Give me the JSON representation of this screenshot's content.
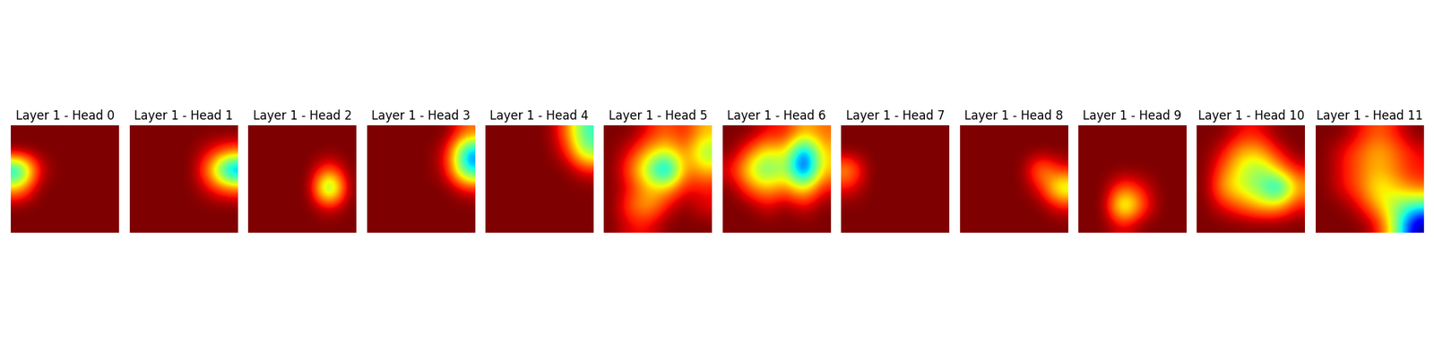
{
  "chart_data": [
    {
      "type": "heatmap",
      "title": "Layer 1 - Head 0",
      "tick_labels": false,
      "cells": [
        [
          0,
          0,
          0,
          0,
          0,
          0
        ],
        [
          0,
          0,
          0,
          0,
          0,
          0
        ],
        [
          0.8,
          0.1,
          0,
          0,
          0,
          0
        ],
        [
          0.3,
          0,
          0,
          0,
          0,
          0
        ],
        [
          0,
          0,
          0,
          0,
          0,
          0
        ],
        [
          0,
          0,
          0,
          0,
          0,
          0
        ]
      ]
    },
    {
      "type": "heatmap",
      "title": "Layer 1 - Head 1",
      "tick_labels": false,
      "cells": [
        [
          0,
          0,
          0,
          0,
          0,
          0
        ],
        [
          0,
          0,
          0,
          0,
          0.1,
          0.2
        ],
        [
          0,
          0,
          0,
          0,
          0.3,
          0.9
        ],
        [
          0,
          0,
          0,
          0,
          0.1,
          0.2
        ],
        [
          0,
          0,
          0,
          0,
          0,
          0
        ],
        [
          0,
          0,
          0,
          0,
          0,
          0
        ]
      ]
    },
    {
      "type": "heatmap",
      "title": "Layer 1 - Head 2",
      "tick_labels": false,
      "cells": [
        [
          0,
          0,
          0,
          0,
          0,
          0
        ],
        [
          0,
          0,
          0,
          0,
          0,
          0
        ],
        [
          0,
          0,
          0,
          0,
          0.2,
          0
        ],
        [
          0,
          0,
          0,
          0,
          0.8,
          0
        ],
        [
          0,
          0,
          0,
          0,
          0.1,
          0
        ],
        [
          0,
          0,
          0,
          0,
          0,
          0
        ]
      ]
    },
    {
      "type": "heatmap",
      "title": "Layer 1 - Head 3",
      "tick_labels": false,
      "cells": [
        [
          0,
          0,
          0,
          0,
          0,
          0.2
        ],
        [
          0,
          0,
          0,
          0,
          0.1,
          0.8
        ],
        [
          0,
          0,
          0,
          0,
          0.1,
          0.7
        ],
        [
          0,
          0,
          0,
          0,
          0,
          0.1
        ],
        [
          0,
          0,
          0,
          0,
          0,
          0
        ],
        [
          0,
          0,
          0,
          0,
          0,
          0
        ]
      ]
    },
    {
      "type": "heatmap",
      "title": "Layer 1 - Head 4",
      "tick_labels": false,
      "cells": [
        [
          0,
          0,
          0,
          0,
          0.2,
          0.6
        ],
        [
          0,
          0,
          0,
          0,
          0.1,
          0.5
        ],
        [
          0,
          0,
          0,
          0,
          0,
          0.1
        ],
        [
          0,
          0,
          0,
          0,
          0,
          0
        ],
        [
          0,
          0,
          0,
          0,
          0,
          0
        ],
        [
          0,
          0,
          0,
          0,
          0,
          0
        ]
      ]
    },
    {
      "type": "heatmap",
      "title": "Layer 1 - Head 5",
      "tick_labels": false,
      "cells": [
        [
          0,
          0,
          0.1,
          0.2,
          0.1,
          0.3
        ],
        [
          0,
          0.1,
          0.3,
          0.4,
          0.2,
          0.5
        ],
        [
          0,
          0.2,
          0.5,
          0.9,
          0.2,
          0.3
        ],
        [
          0,
          0.1,
          0.3,
          0.3,
          0.1,
          0.1
        ],
        [
          0,
          0.2,
          0.3,
          0.1,
          0,
          0.1
        ],
        [
          0,
          0.1,
          0.1,
          0,
          0,
          0
        ]
      ]
    },
    {
      "type": "heatmap",
      "title": "Layer 1 - Head 6",
      "tick_labels": false,
      "cells": [
        [
          0,
          0,
          0.1,
          0.1,
          0.3,
          0.2
        ],
        [
          0,
          0.2,
          0.4,
          0.3,
          0.9,
          0.3
        ],
        [
          0.1,
          0.4,
          0.6,
          0.4,
          1.0,
          0.3
        ],
        [
          0,
          0.2,
          0.3,
          0.2,
          0.4,
          0.1
        ],
        [
          0,
          0,
          0.1,
          0,
          0.1,
          0
        ],
        [
          0,
          0,
          0,
          0,
          0,
          0
        ]
      ]
    },
    {
      "type": "heatmap",
      "title": "Layer 1 - Head 7",
      "tick_labels": false,
      "cells": [
        [
          0,
          0,
          0,
          0,
          0,
          0
        ],
        [
          0,
          0,
          0,
          0,
          0,
          0
        ],
        [
          0.3,
          0,
          0,
          0,
          0,
          0
        ],
        [
          0.1,
          0,
          0,
          0,
          0,
          0
        ],
        [
          0,
          0,
          0,
          0,
          0,
          0
        ],
        [
          0,
          0,
          0,
          0,
          0,
          0
        ]
      ]
    },
    {
      "type": "heatmap",
      "title": "Layer 1 - Head 8",
      "tick_labels": false,
      "cells": [
        [
          0,
          0,
          0,
          0,
          0,
          0
        ],
        [
          0,
          0,
          0,
          0,
          0,
          0
        ],
        [
          0,
          0,
          0,
          0,
          0.3,
          0.1
        ],
        [
          0,
          0,
          0,
          0,
          0.1,
          0.5
        ],
        [
          0,
          0,
          0,
          0,
          0,
          0.1
        ],
        [
          0,
          0,
          0,
          0,
          0,
          0
        ]
      ]
    },
    {
      "type": "heatmap",
      "title": "Layer 1 - Head 9",
      "tick_labels": false,
      "cells": [
        [
          0,
          0,
          0,
          0,
          0,
          0
        ],
        [
          0,
          0,
          0,
          0,
          0,
          0
        ],
        [
          0,
          0,
          0,
          0,
          0,
          0
        ],
        [
          0,
          0,
          0.2,
          0.1,
          0,
          0
        ],
        [
          0,
          0,
          0.6,
          0.2,
          0,
          0
        ],
        [
          0,
          0,
          0.1,
          0,
          0,
          0
        ]
      ]
    },
    {
      "type": "heatmap",
      "title": "Layer 1 - Head 10",
      "tick_labels": false,
      "cells": [
        [
          0,
          0,
          0.1,
          0.1,
          0,
          0
        ],
        [
          0,
          0.1,
          0.3,
          0.3,
          0.1,
          0
        ],
        [
          0,
          0.2,
          0.4,
          0.5,
          0.3,
          0.1
        ],
        [
          0,
          0.3,
          0.4,
          0.5,
          0.8,
          0.3
        ],
        [
          0,
          0.1,
          0.2,
          0.3,
          0.3,
          0.1
        ],
        [
          0,
          0,
          0,
          0,
          0,
          0
        ]
      ]
    },
    {
      "type": "heatmap",
      "title": "Layer 1 - Head 11",
      "tick_labels": false,
      "cells": [
        [
          0,
          0,
          0.1,
          0.2,
          0.1,
          0
        ],
        [
          0,
          0.1,
          0.2,
          0.3,
          0.2,
          0.1
        ],
        [
          0,
          0.1,
          0.2,
          0.3,
          0.2,
          0.1
        ],
        [
          0,
          0.1,
          0.2,
          0.4,
          0.3,
          0.2
        ],
        [
          0,
          0,
          0.1,
          0.3,
          0.5,
          0.6
        ],
        [
          0,
          0,
          0,
          0.1,
          0.5,
          1.0
        ]
      ]
    }
  ]
}
